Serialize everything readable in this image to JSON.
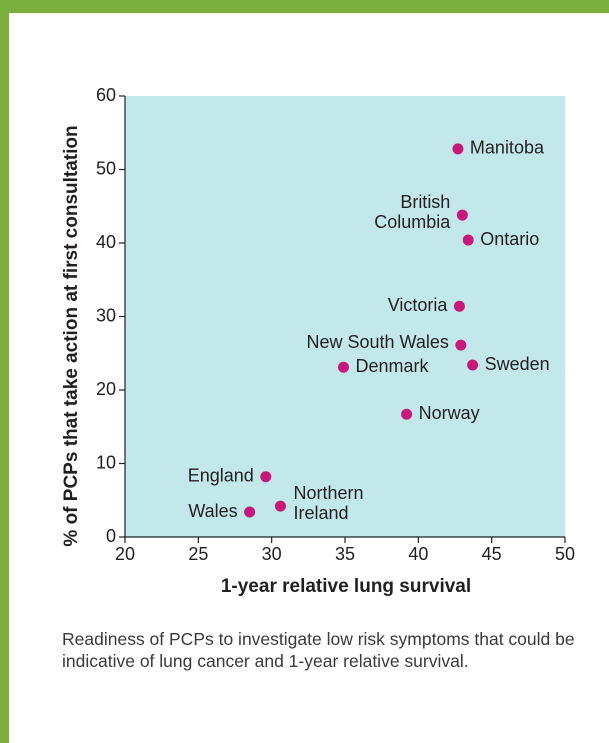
{
  "chart_data": {
    "type": "scatter",
    "x_label": "1-year relative lung survival",
    "y_label": "% of PCPs that take action at first consultation",
    "labels": [
      "Manitoba",
      [
        "British",
        "Columbia"
      ],
      "Ontario",
      "Victoria",
      "New South Wales",
      "Denmark",
      "Sweden",
      "Norway",
      "England",
      "Wales",
      [
        "Northern",
        "Ireland"
      ]
    ],
    "x": [
      42.7,
      43.0,
      43.4,
      42.8,
      42.9,
      34.9,
      43.7,
      39.2,
      29.6,
      28.5,
      30.6
    ],
    "values": [
      52.8,
      43.8,
      40.4,
      31.4,
      26.1,
      23.1,
      23.4,
      16.7,
      8.2,
      3.4,
      4.2
    ],
    "color": "#c8187a",
    "background": "#c2e8ec",
    "xlim": [
      20,
      50
    ],
    "xticks": [
      20,
      25,
      30,
      35,
      40,
      45,
      50
    ],
    "ylim": [
      0,
      60
    ],
    "yticks": [
      0,
      10,
      20,
      30,
      40,
      50,
      60
    ]
  },
  "caption": "Readiness of PCPs to investigate low risk symptoms that could be indicative of lung cancer and 1-year relative survival."
}
